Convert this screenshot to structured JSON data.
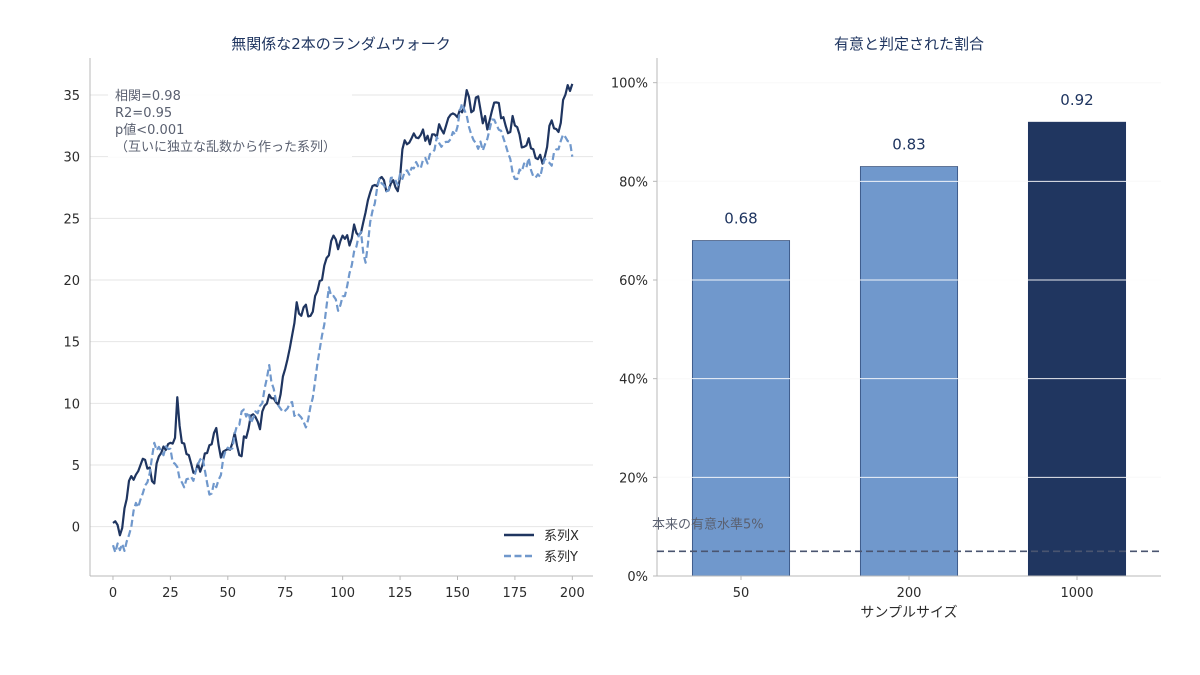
{
  "colors": {
    "dark": "#1f3560",
    "light": "#7098cc",
    "grid": "#e6e6e6",
    "axis": "#b8b8b8",
    "text": "#2b2b2b",
    "annotation": "#5a6070",
    "threshold": "#4a5570"
  },
  "chart_data": [
    {
      "type": "line",
      "title": "無関係な2本のランダムウォーク",
      "xlabel": "",
      "ylabel": "",
      "xlim": [
        -10,
        209
      ],
      "ylim": [
        -4,
        38
      ],
      "xticks": [
        0,
        25,
        50,
        75,
        100,
        125,
        150,
        175,
        200
      ],
      "yticks": [
        0,
        5,
        10,
        15,
        20,
        25,
        30,
        35
      ],
      "grid": "horizontal",
      "legend": "bottom-right",
      "annotation": [
        "相関=0.98",
        "R2=0.95",
        "p値<0.001",
        "（互いに独立な乱数から作った系列）"
      ],
      "x_range": [
        0,
        199
      ],
      "series": [
        {
          "name": "系列X",
          "style": "solid",
          "color": "#1f3560",
          "points": [
            [
              0,
              0.3
            ],
            [
              3,
              -0.7
            ],
            [
              5,
              1.5
            ],
            [
              8,
              4.1
            ],
            [
              11,
              4.5
            ],
            [
              13,
              5.5
            ],
            [
              16,
              4.8
            ],
            [
              18,
              3.5
            ],
            [
              20,
              5.7
            ],
            [
              22,
              6.5
            ],
            [
              25,
              6.8
            ],
            [
              27,
              7.2
            ],
            [
              28,
              10.5
            ],
            [
              30,
              6.8
            ],
            [
              33,
              5.8
            ],
            [
              36,
              4.5
            ],
            [
              39,
              5
            ],
            [
              42,
              6.6
            ],
            [
              45,
              8
            ],
            [
              47,
              5.6
            ],
            [
              50,
              6.3
            ],
            [
              53,
              7.6
            ],
            [
              55,
              5.8
            ],
            [
              58,
              7.2
            ],
            [
              60,
              9
            ],
            [
              62,
              8.9
            ],
            [
              64,
              7.9
            ],
            [
              66,
              9.8
            ],
            [
              68,
              10.7
            ],
            [
              70,
              10.4
            ],
            [
              72,
              9.9
            ],
            [
              75,
              12.8
            ],
            [
              78,
              15.5
            ],
            [
              80,
              18.2
            ],
            [
              82,
              17.1
            ],
            [
              84,
              18
            ],
            [
              86,
              17.1
            ],
            [
              89,
              19.1
            ],
            [
              91,
              20
            ],
            [
              94,
              22
            ],
            [
              96,
              23.6
            ],
            [
              98,
              22.5
            ],
            [
              100,
              23.6
            ],
            [
              103,
              22.8
            ],
            [
              105,
              24.5
            ],
            [
              107,
              23.6
            ],
            [
              110,
              25.5
            ],
            [
              112,
              27.1
            ],
            [
              114,
              27.7
            ],
            [
              116,
              28.2
            ],
            [
              119,
              27.2
            ],
            [
              122,
              28.1
            ],
            [
              124,
              27.2
            ],
            [
              126,
              30.6
            ],
            [
              128,
              31
            ],
            [
              130,
              31.5
            ],
            [
              133,
              31.5
            ],
            [
              135,
              32.2
            ],
            [
              138,
              31
            ],
            [
              140,
              31.8
            ],
            [
              143,
              32.2
            ],
            [
              145,
              32.5
            ],
            [
              147,
              33.4
            ],
            [
              150,
              33.2
            ],
            [
              152,
              33.6
            ],
            [
              154,
              35.4
            ],
            [
              156,
              33.6
            ],
            [
              158,
              34.8
            ],
            [
              160,
              33.8
            ],
            [
              163,
              32.2
            ],
            [
              165,
              33.7
            ],
            [
              167,
              34.4
            ],
            [
              170,
              33.2
            ],
            [
              172,
              31.9
            ],
            [
              174,
              33.3
            ],
            [
              176,
              32.4
            ],
            [
              179,
              30.8
            ],
            [
              181,
              31.5
            ],
            [
              183,
              30.6
            ],
            [
              185,
              29.8
            ],
            [
              188,
              30
            ],
            [
              190,
              32.5
            ],
            [
              192,
              32.3
            ],
            [
              194,
              32
            ],
            [
              196,
              34.6
            ],
            [
              198,
              35.8
            ],
            [
              200,
              35.9
            ]
          ]
        },
        {
          "name": "系列Y",
          "style": "dashed",
          "color": "#7098cc",
          "points": [
            [
              0,
              -1.5
            ],
            [
              3,
              -1.9
            ],
            [
              6,
              -1.2
            ],
            [
              9,
              1.3
            ],
            [
              12,
              2.2
            ],
            [
              15,
              3.6
            ],
            [
              18,
              6.8
            ],
            [
              21,
              6.1
            ],
            [
              24,
              6.3
            ],
            [
              27,
              5.1
            ],
            [
              30,
              3.6
            ],
            [
              33,
              3.9
            ],
            [
              36,
              4.5
            ],
            [
              39,
              5.6
            ],
            [
              42,
              2.6
            ],
            [
              45,
              3.2
            ],
            [
              48,
              5.5
            ],
            [
              51,
              6.3
            ],
            [
              54,
              8.2
            ],
            [
              57,
              9.5
            ],
            [
              60,
              8.4
            ],
            [
              63,
              9.2
            ],
            [
              66,
              11.2
            ],
            [
              68,
              13.1
            ],
            [
              71,
              10.2
            ],
            [
              74,
              9.3
            ],
            [
              77,
              10
            ],
            [
              80,
              9.2
            ],
            [
              83,
              8.5
            ],
            [
              85,
              8.7
            ],
            [
              88,
              11.8
            ],
            [
              91,
              15.5
            ],
            [
              94,
              19.4
            ],
            [
              96,
              18.7
            ],
            [
              98,
              17.5
            ],
            [
              101,
              18.7
            ],
            [
              104,
              21.2
            ],
            [
              106,
              22.7
            ],
            [
              108,
              23.9
            ],
            [
              110,
              21.4
            ],
            [
              113,
              25.6
            ],
            [
              116,
              28.2
            ],
            [
              119,
              27.2
            ],
            [
              122,
              28.3
            ],
            [
              124,
              27.7
            ],
            [
              127,
              28.8
            ],
            [
              130,
              29.1
            ],
            [
              133,
              29.2
            ],
            [
              136,
              29.9
            ],
            [
              139,
              30.3
            ],
            [
              141,
              31.6
            ],
            [
              143,
              30.8
            ],
            [
              146,
              31.2
            ],
            [
              149,
              31.8
            ],
            [
              152,
              34.3
            ],
            [
              155,
              32.4
            ],
            [
              158,
              31.1
            ],
            [
              161,
              30.5
            ],
            [
              164,
              32.2
            ],
            [
              166,
              33
            ],
            [
              169,
              32.1
            ],
            [
              172,
              30.3
            ],
            [
              175,
              28.2
            ],
            [
              178,
              28.8
            ],
            [
              181,
              29.9
            ],
            [
              184,
              28.3
            ],
            [
              187,
              29.2
            ],
            [
              190,
              29.5
            ],
            [
              193,
              30.6
            ],
            [
              196,
              31.8
            ],
            [
              199,
              31.2
            ],
            [
              200,
              30
            ]
          ]
        }
      ]
    },
    {
      "type": "bar",
      "title": "有意と判定された割合",
      "xlabel": "サンプルサイズ",
      "ylabel": "",
      "ylim": [
        0,
        1.05
      ],
      "yticks": [
        0,
        0.2,
        0.4,
        0.6,
        0.8,
        1.0
      ],
      "ytick_labels": [
        "0%",
        "20%",
        "40%",
        "60%",
        "80%",
        "100%"
      ],
      "categories": [
        "50",
        "200",
        "1000"
      ],
      "values": [
        0.68,
        0.83,
        0.92
      ],
      "value_labels": [
        "0.68",
        "0.83",
        "0.92"
      ],
      "bar_colors": [
        "#7098cc",
        "#7098cc",
        "#203660"
      ],
      "threshold": {
        "value": 0.05,
        "label": "本来の有意水準5%",
        "style": "dashed"
      },
      "grid": "horizontal"
    }
  ]
}
